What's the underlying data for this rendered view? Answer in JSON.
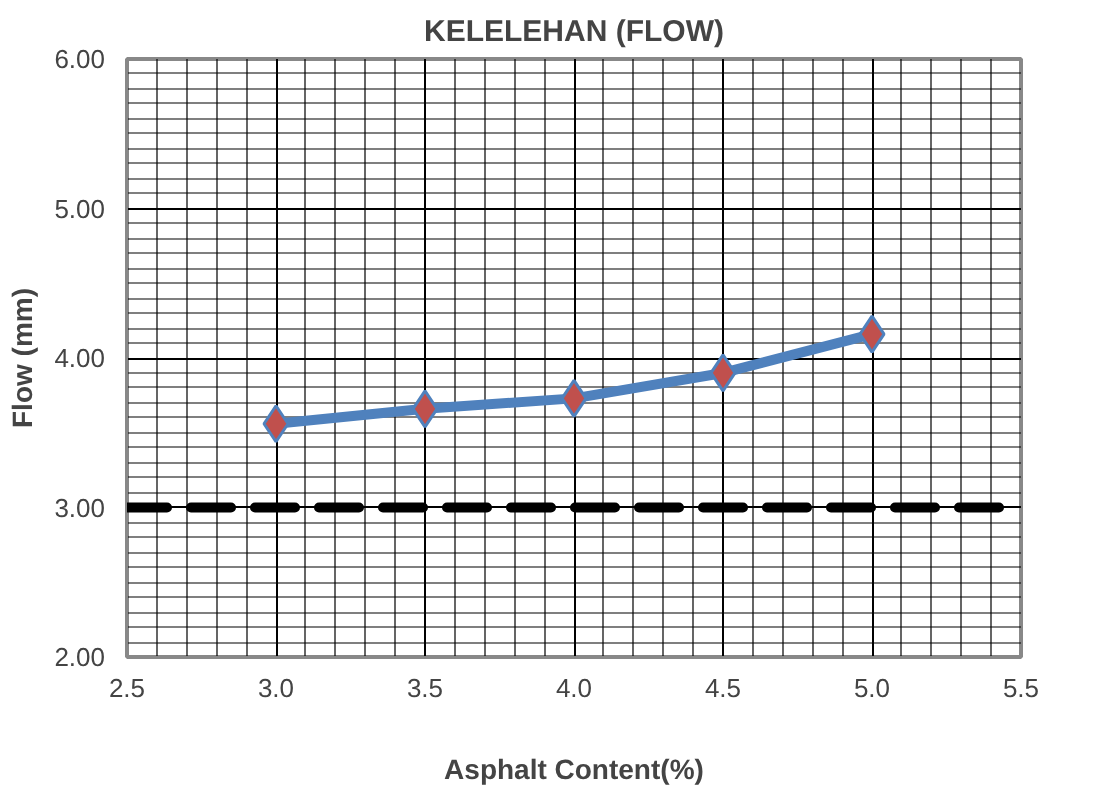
{
  "chart_data": {
    "type": "line",
    "title": "KELELEHAN (FLOW)",
    "xlabel": "Asphalt Content(%)",
    "ylabel": "Flow (mm)",
    "x": [
      3.0,
      3.5,
      4.0,
      4.5,
      5.0
    ],
    "series": [
      {
        "color": "#4f81bd",
        "values": [
          3.56,
          3.66,
          3.73,
          3.9,
          4.16
        ]
      }
    ],
    "marker": "diamond",
    "line_style": "solid",
    "xlim": [
      2.5,
      5.5
    ],
    "xticks": [
      {
        "value": 2.5,
        "label": "2.5"
      },
      {
        "value": 3.0,
        "label": "3.0"
      },
      {
        "value": 3.5,
        "label": "3.5"
      },
      {
        "value": 4.0,
        "label": "4.0"
      },
      {
        "value": 4.5,
        "label": "4.5"
      },
      {
        "value": 5.0,
        "label": "5.0"
      },
      {
        "value": 5.5,
        "label": "5.5"
      }
    ],
    "ylim": [
      2.0,
      6.0
    ],
    "yticks": [
      {
        "value": 2.0,
        "label": "2.00"
      },
      {
        "value": 3.0,
        "label": "3.00"
      },
      {
        "value": 4.0,
        "label": "4.00"
      },
      {
        "value": 5.0,
        "label": "5.00"
      },
      {
        "value": 6.0,
        "label": "6.00"
      }
    ],
    "grid": true,
    "ref_lines": [
      {
        "axis": "y",
        "value": 3.0,
        "label": null,
        "color": "#000000",
        "line_style": "dashed"
      }
    ]
  }
}
